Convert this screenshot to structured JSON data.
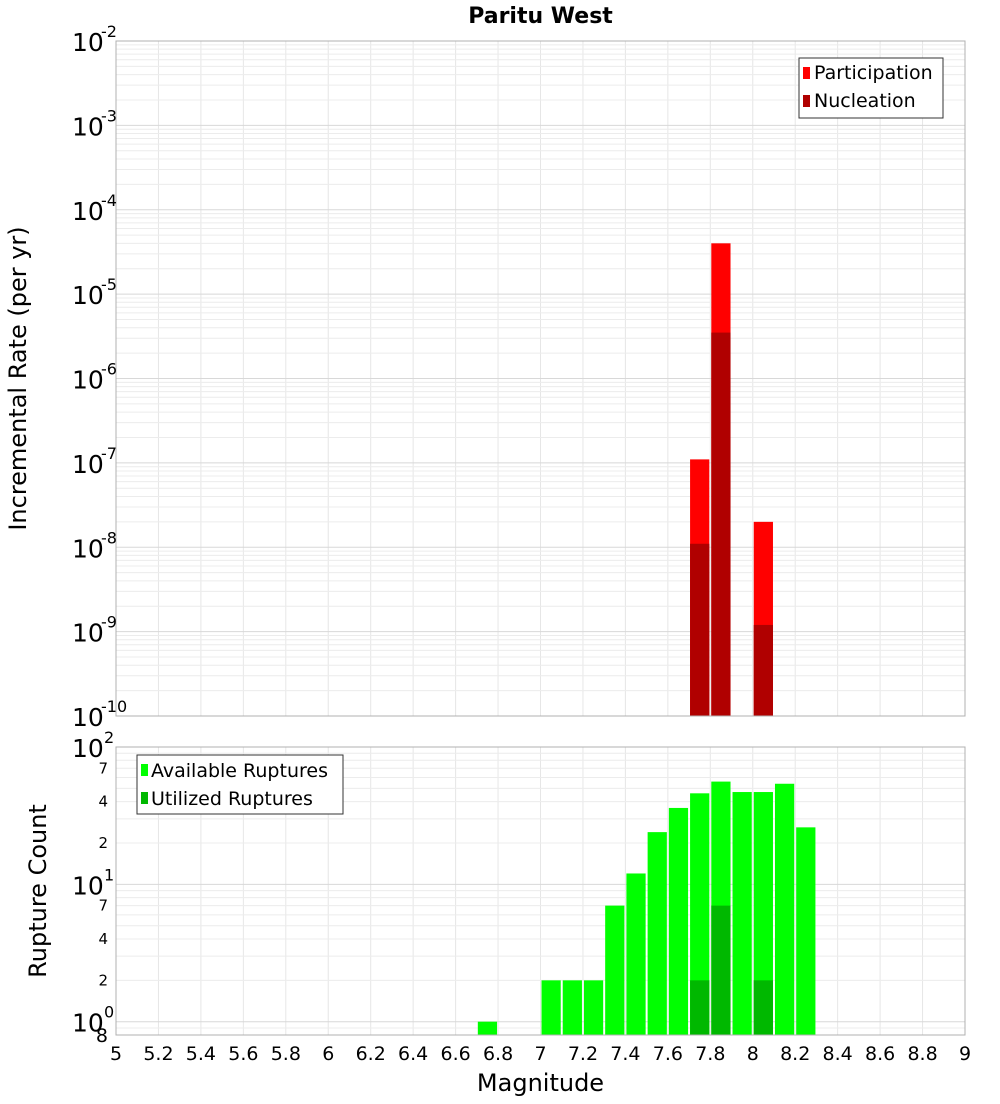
{
  "chart_data": [
    {
      "type": "bar",
      "title": "Paritu West",
      "xlabel": "",
      "ylabel": "Incremental Rate (per yr)",
      "yscale": "log",
      "xlim": [
        5,
        9
      ],
      "ylim": [
        1e-10,
        0.01
      ],
      "grid": true,
      "legend_position": "top-right",
      "ytick_base": "10",
      "ytick_exponents": [
        "-2",
        "-3",
        "-4",
        "-5",
        "-6",
        "-7",
        "-8",
        "-9",
        "-10"
      ],
      "series": [
        {
          "name": "Participation",
          "color": "#ff0000",
          "x": [
            7.75,
            7.85,
            8.05
          ],
          "values": [
            1.1e-07,
            4e-05,
            2e-08
          ]
        },
        {
          "name": "Nucleation",
          "color": "#b00000",
          "x": [
            7.75,
            7.85,
            8.05
          ],
          "values": [
            1.1e-08,
            3.5e-06,
            1.2e-09
          ]
        }
      ]
    },
    {
      "type": "bar",
      "xlabel": "Magnitude",
      "ylabel": "Rupture Count",
      "yscale": "log",
      "xlim": [
        5,
        9
      ],
      "ylim": [
        0.8,
        100
      ],
      "grid": true,
      "legend_position": "top-left",
      "x_ticks": [
        "5",
        "5.2",
        "5.4",
        "5.6",
        "5.8",
        "6",
        "6.2",
        "6.4",
        "6.6",
        "6.8",
        "7",
        "7.2",
        "7.4",
        "7.6",
        "7.8",
        "8",
        "8.2",
        "8.4",
        "8.6",
        "8.8",
        "9"
      ],
      "y_major_ticks": [
        {
          "value": 100,
          "base": "10",
          "exp": "2"
        },
        {
          "value": 10,
          "base": "10",
          "exp": "1"
        },
        {
          "value": 1,
          "base": "10",
          "exp": "0"
        }
      ],
      "y_minor_ticks": [
        {
          "value": 70,
          "label": "7"
        },
        {
          "value": 40,
          "label": "4"
        },
        {
          "value": 20,
          "label": "2"
        },
        {
          "value": 7,
          "label": "7"
        },
        {
          "value": 4,
          "label": "4"
        },
        {
          "value": 2,
          "label": "2"
        },
        {
          "value": 0.8,
          "label": "8"
        }
      ],
      "series": [
        {
          "name": "Available Ruptures",
          "color": "#00ff00",
          "x": [
            6.75,
            7.05,
            7.15,
            7.25,
            7.35,
            7.45,
            7.55,
            7.65,
            7.75,
            7.85,
            7.95,
            8.05,
            8.15,
            8.25
          ],
          "values": [
            1,
            2,
            2,
            2,
            7,
            12,
            24,
            36,
            46,
            56,
            47,
            47,
            54,
            26
          ]
        },
        {
          "name": "Utilized Ruptures",
          "color": "#00b800",
          "x": [
            7.75,
            7.85,
            8.05
          ],
          "values": [
            2,
            7,
            2
          ]
        }
      ]
    }
  ]
}
